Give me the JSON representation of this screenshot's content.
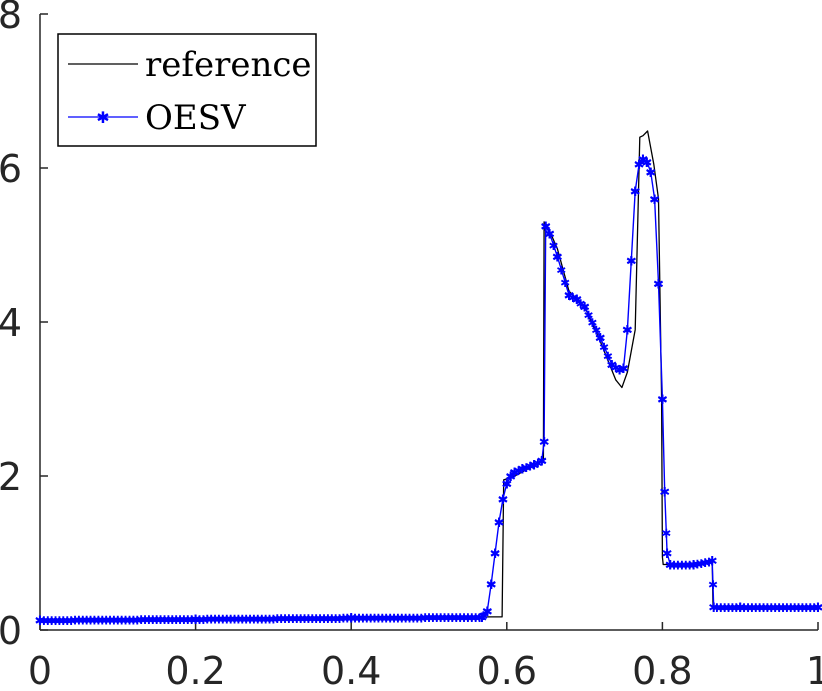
{
  "chart_data": {
    "type": "line",
    "title": "",
    "xlabel": "",
    "ylabel": "",
    "xlim": [
      0,
      1
    ],
    "ylim": [
      0,
      8
    ],
    "xticks": [
      "0",
      "0.2",
      "0.4",
      "0.6",
      "0.8",
      "1"
    ],
    "yticks": [
      "0",
      "2",
      "4",
      "6",
      "8"
    ],
    "grid": false,
    "legend_position": "top-left",
    "series": [
      {
        "name": "reference",
        "color": "#000000",
        "marker": "none",
        "x": [
          0,
          0.2,
          0.4,
          0.58,
          0.594,
          0.596,
          0.61,
          0.647,
          0.648,
          0.652,
          0.665,
          0.68,
          0.7,
          0.72,
          0.74,
          0.748,
          0.755,
          0.765,
          0.771,
          0.775,
          0.781,
          0.789,
          0.795,
          0.799,
          0.8,
          0.801,
          0.81,
          0.84,
          0.864,
          0.865,
          0.9,
          1
        ],
        "y": [
          0.13,
          0.145,
          0.16,
          0.17,
          0.17,
          1.95,
          2.0,
          2.2,
          5.3,
          5.25,
          4.95,
          4.4,
          4.2,
          3.75,
          3.25,
          3.15,
          3.35,
          3.9,
          6.4,
          6.42,
          6.48,
          6.05,
          5.6,
          3.0,
          0.95,
          0.85,
          0.85,
          0.87,
          0.9,
          0.3,
          0.3,
          0.3
        ]
      },
      {
        "name": "OESV",
        "color": "#0000ff",
        "marker": "asterisk",
        "x": [
          0,
          0.2,
          0.4,
          0.568,
          0.575,
          0.58,
          0.585,
          0.59,
          0.595,
          0.6,
          0.605,
          0.61,
          0.62,
          0.635,
          0.645,
          0.648,
          0.65,
          0.655,
          0.665,
          0.68,
          0.69,
          0.7,
          0.72,
          0.735,
          0.745,
          0.75,
          0.755,
          0.76,
          0.765,
          0.77,
          0.775,
          0.78,
          0.785,
          0.79,
          0.795,
          0.8,
          0.803,
          0.806,
          0.81,
          0.84,
          0.864,
          0.866,
          0.9,
          1
        ],
        "y": [
          0.13,
          0.145,
          0.16,
          0.17,
          0.25,
          0.6,
          1.0,
          1.4,
          1.7,
          1.9,
          2.0,
          2.05,
          2.1,
          2.15,
          2.2,
          2.45,
          5.25,
          5.15,
          4.85,
          4.35,
          4.3,
          4.2,
          3.8,
          3.45,
          3.38,
          3.4,
          3.9,
          4.8,
          5.7,
          6.05,
          6.12,
          6.08,
          5.95,
          5.6,
          4.5,
          3.0,
          1.8,
          1.0,
          0.85,
          0.85,
          0.9,
          0.3,
          0.3,
          0.3
        ]
      }
    ]
  }
}
